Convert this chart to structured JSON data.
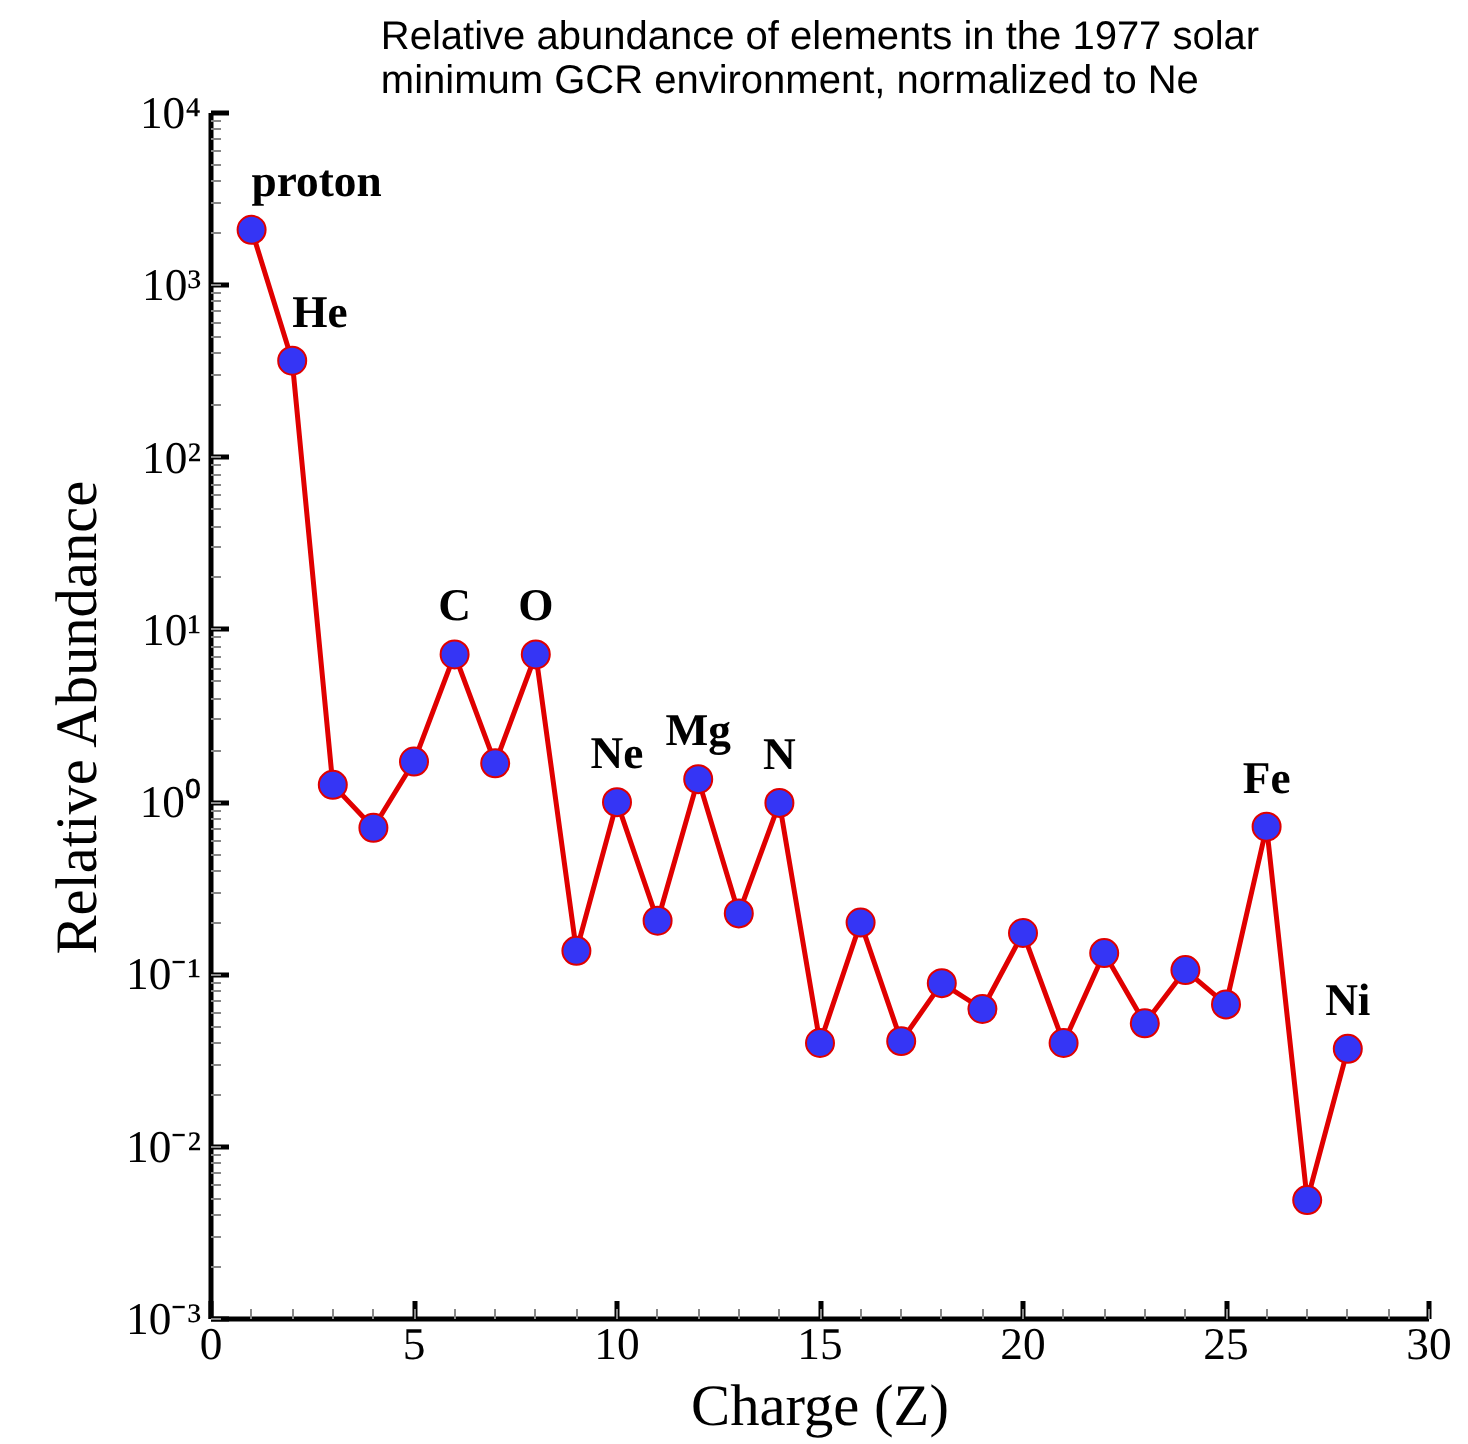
{
  "chart_data": {
    "type": "line",
    "title": "Relative abundance of elements in the 1977 solar minimum GCR environment, normalized to Ne",
    "xlabel": "Charge (Z)",
    "ylabel": "Relative Abundance",
    "x": [
      1,
      2,
      3,
      4,
      5,
      6,
      7,
      8,
      9,
      10,
      11,
      12,
      13,
      14,
      15,
      16,
      17,
      18,
      19,
      20,
      21,
      22,
      23,
      24,
      25,
      26,
      27,
      28
    ],
    "series": [
      {
        "color": "#e00000",
        "colors": [
          "#3535f5",
          "#3535f5",
          "#3535f5",
          "#3535f5",
          "#3535f5",
          "#3535f5",
          "#3535f5",
          "#3535f5",
          "#3535f5",
          "#3535f5",
          "#3535f5",
          "#3535f5",
          "#3535f5",
          "#3535f5",
          "#3535f5",
          "#3535f5",
          "#3535f5",
          "#3535f5",
          "#3535f5",
          "#3535f5",
          "#3535f5",
          "#3535f5",
          "#3535f5",
          "#3535f5",
          "#3535f5",
          "#3535f5",
          "#3535f5",
          "#3535f5"
        ],
        "values": [
          2100,
          365,
          1.26,
          0.71,
          1.72,
          7.2,
          1.68,
          7.2,
          0.137,
          1.0,
          0.205,
          1.36,
          0.226,
          0.99,
          0.04,
          0.2,
          0.041,
          0.089,
          0.063,
          0.174,
          0.04,
          0.133,
          0.052,
          0.106,
          0.067,
          0.72,
          0.0049,
          0.037
        ]
      }
    ],
    "log": "y",
    "marker": "circle",
    "line_style": "solid",
    "grid": false,
    "xlim": [
      0,
      30
    ],
    "xticks": [
      0,
      5,
      10,
      15,
      20,
      25,
      30
    ],
    "ylim": [
      0.001,
      10000
    ],
    "yticks": [
      {
        "value": 0.001,
        "label": "10⁻³"
      },
      {
        "value": 0.01,
        "label": "10⁻²"
      },
      {
        "value": 0.1,
        "label": "10⁻¹"
      },
      {
        "value": 1,
        "label": "10⁰"
      },
      {
        "value": 10,
        "label": "10¹"
      },
      {
        "value": 100,
        "label": "10²"
      },
      {
        "value": 1000,
        "label": "10³"
      },
      {
        "value": 10000,
        "label": "10⁴"
      }
    ],
    "annotations": [
      {
        "text": "proton",
        "x": 1,
        "y": 2100
      },
      {
        "text": "He",
        "x": 2,
        "y": 365
      },
      {
        "text": "C",
        "x": 6,
        "y": 7.2
      },
      {
        "text": "O",
        "x": 8,
        "y": 7.2
      },
      {
        "text": "Ne",
        "x": 10,
        "y": 1.0
      },
      {
        "text": "Mg",
        "x": 12,
        "y": 1.36
      },
      {
        "text": "N",
        "x": 14,
        "y": 0.99
      },
      {
        "text": "Fe",
        "x": 26,
        "y": 0.72
      },
      {
        "text": "Ni",
        "x": 28,
        "y": 0.037
      }
    ]
  }
}
